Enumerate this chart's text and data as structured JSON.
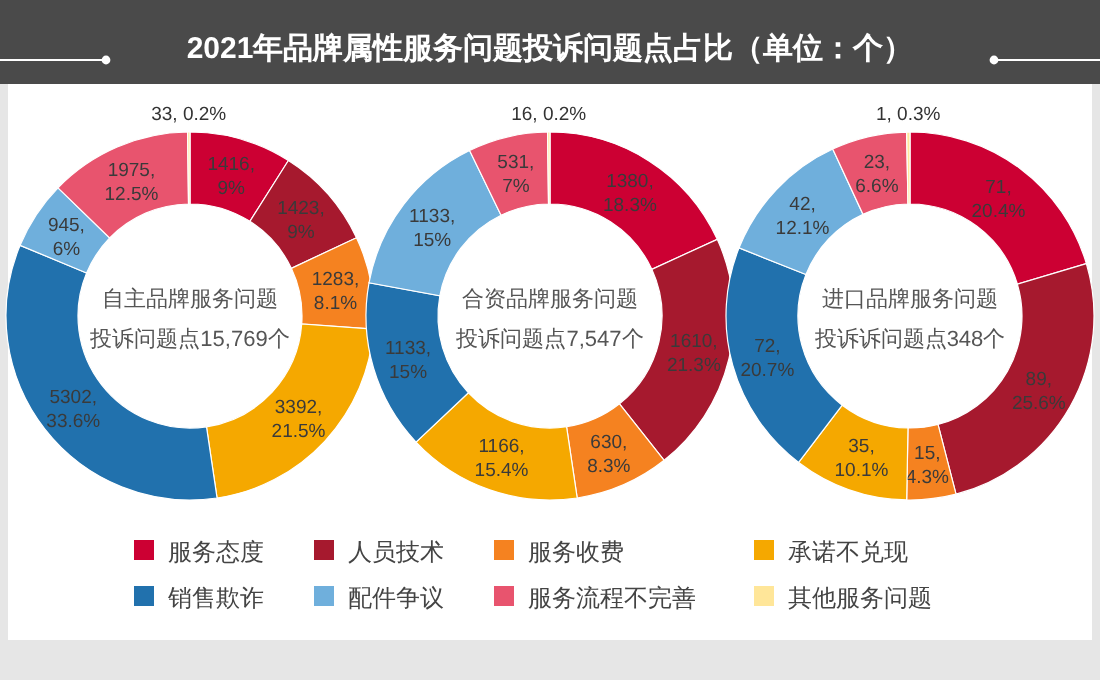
{
  "chart_data": [
    {
      "type": "donut",
      "title": "2021年品牌属性服务问题投诉问题点占比（单位：个）",
      "legend": "bottom",
      "annotations": [
        "自主品牌服务问题",
        "投诉问题点15,769个"
      ],
      "categories": [
        "服务态度",
        "人员技术",
        "服务收费",
        "承诺不兑现",
        "销售欺诈",
        "配件争议",
        "服务流程不完善",
        "其他服务问题"
      ],
      "colors": [
        "#cc0033",
        "#a6192e",
        "#f58220",
        "#f5a800",
        "#2171ad",
        "#6fafdc",
        "#e8546e",
        "#ffe699"
      ],
      "values": [
        1416,
        1423,
        1283,
        3392,
        5302,
        945,
        1975,
        33
      ],
      "value_labels": [
        "1416, 9%",
        "1423, 9%",
        "1283, 8.1%",
        "3392, 21.5%",
        "5302, 33.6%",
        "945, 6%",
        "1975, 12.5%",
        "33, 0.2%"
      ]
    },
    {
      "type": "donut",
      "annotations": [
        "合资品牌服务问题",
        "投诉问题点7,547个"
      ],
      "categories": [
        null,
        null,
        null,
        null,
        null,
        null,
        null,
        null
      ],
      "colors": [
        "#cc0033",
        "#a6192e",
        "#f58220",
        "#f5a800",
        "#2171ad",
        "#6fafdc",
        "#e8546e",
        "#ffe699"
      ],
      "values": [
        1380,
        1610,
        630,
        1166,
        1133,
        1133,
        531,
        16
      ],
      "value_labels": [
        "1380, 18.3%",
        "1610, 21.3%",
        "630, 8.3%",
        "1166, 15.4%",
        "1133, 15%",
        "1133, 15%",
        "531, 7%",
        "16, 0.2%"
      ]
    },
    {
      "type": "donut",
      "annotations": [
        "进口品牌服务问题",
        "投诉诉问题点348个"
      ],
      "categories": [
        null,
        null,
        null,
        null,
        null,
        null,
        null,
        null
      ],
      "colors": [
        "#cc0033",
        "#a6192e",
        "#f58220",
        "#f5a800",
        "#2171ad",
        "#6fafdc",
        "#e8546e",
        "#ffe699"
      ],
      "values": [
        71,
        89,
        15,
        35,
        72,
        42,
        23,
        1
      ],
      "value_labels": [
        "71, 20.4%",
        "89, 25.6%",
        "15, 4.3%",
        "35, 10.1%",
        "72, 20.7%",
        "42, 12.1%",
        "23, 6.6%",
        "1, 0.3%"
      ]
    }
  ]
}
